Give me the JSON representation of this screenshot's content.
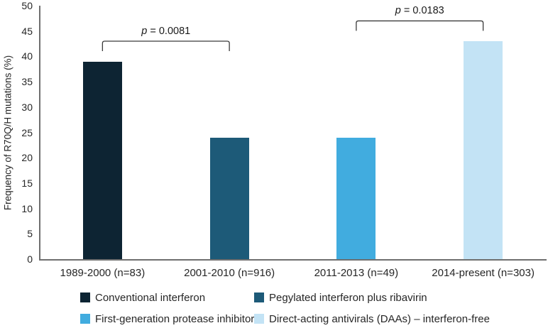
{
  "chart_data": {
    "type": "bar",
    "title": "",
    "xlabel": "",
    "ylabel": "Frequency of R70Q/H mutations (%)",
    "ylim": [
      0,
      50
    ],
    "ytick_step": 5,
    "grid": false,
    "legend_position": "bottom",
    "categories": [
      "1989-2000 (n=83)",
      "2001-2010 (n=916)",
      "2011-2013 (n=49)",
      "2014-present (n=303)"
    ],
    "values": [
      39,
      24,
      24,
      43
    ],
    "colors": [
      "#0d2433",
      "#1d5a78",
      "#41acdf",
      "#c3e3f5"
    ],
    "annotations": [
      {
        "p_italic": "p",
        "p_text": "= 0.0081",
        "from": 0,
        "to": 1,
        "y_value": 43
      },
      {
        "p_italic": "p",
        "p_text": "= 0.0183",
        "from": 2,
        "to": 3,
        "y_value": 47
      }
    ],
    "legend": [
      {
        "label": "Conventional interferon",
        "color": "#0d2433"
      },
      {
        "label": "Pegylated interferon plus ribavirin",
        "color": "#1d5a78"
      },
      {
        "label": "First-generation protease inhibitors",
        "color": "#41acdf"
      },
      {
        "label": "Direct-acting antivirals (DAAs) – interferon-free",
        "color": "#c3e3f5"
      }
    ]
  }
}
